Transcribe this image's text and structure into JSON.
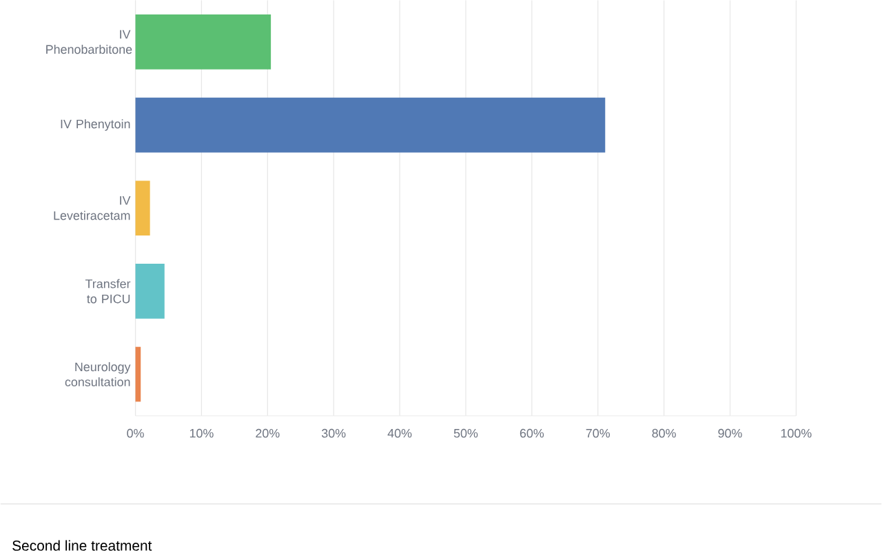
{
  "chart_data": {
    "type": "bar",
    "orientation": "horizontal",
    "title": "Second line treatment",
    "categories": [
      "IV Phenobarbitone",
      "IV Phenytoin",
      "IV Levetiracetam",
      "Transfer to PICU",
      "Neurology consultation"
    ],
    "values": [
      20.5,
      71.1,
      2.2,
      4.4,
      0.8
    ],
    "colors": [
      "#5bbf72",
      "#5079b5",
      "#f2bb47",
      "#62c3c8",
      "#e9844e"
    ],
    "xlim": [
      0,
      100
    ],
    "xticks": [
      {
        "value": 0,
        "label": "0%"
      },
      {
        "value": 10,
        "label": "10%"
      },
      {
        "value": 20,
        "label": "20%"
      },
      {
        "value": 30,
        "label": "30%"
      },
      {
        "value": 40,
        "label": "40%"
      },
      {
        "value": 50,
        "label": "50%"
      },
      {
        "value": 60,
        "label": "60%"
      },
      {
        "value": 70,
        "label": "70%"
      },
      {
        "value": 80,
        "label": "80%"
      },
      {
        "value": 90,
        "label": "90%"
      },
      {
        "value": 100,
        "label": "100%"
      }
    ],
    "grid": "x"
  }
}
